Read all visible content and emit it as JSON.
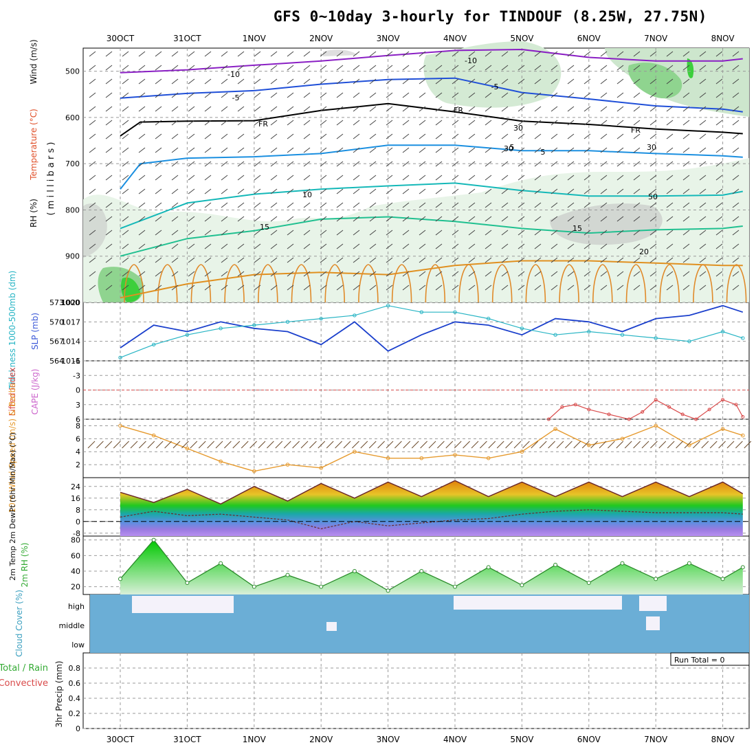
{
  "title": "GFS 0~10day 3-hourly for TINDOUF (8.25W, 27.75N)",
  "days": [
    "30OCT",
    "31OCT",
    "1NOV",
    "2NOV",
    "3NOV",
    "4NOV",
    "5NOV",
    "6NOV",
    "7NOV",
    "8NOV"
  ],
  "colors": {
    "slp": "#1a3fcc",
    "thickness": "#26b4c4",
    "lifted": "#d94a4a",
    "wind": "#e69a2e",
    "rh": "#33aa33",
    "cloud": "#6baed6",
    "cloud_clear": "#f4f2fa",
    "temp_fill": "#e88a20"
  },
  "chart_data": [
    {
      "type": "line",
      "panel": "upper-air cross-section",
      "ylabel_parts": [
        "RH (%)",
        "Temperature (°C)",
        "Wind (m/s)"
      ],
      "ylabel_unit": "( m i l l i b a r s )",
      "yticks": [
        500,
        600,
        700,
        800,
        900,
        1000
      ],
      "ylim": [
        450,
        1000
      ],
      "contour_labels": [
        "-10",
        "-10",
        "-5",
        "-5",
        "FR",
        "FR",
        "FR",
        "5",
        "5",
        "10",
        "15",
        "15",
        "20",
        "10",
        "10",
        "30",
        "30",
        "30",
        "50"
      ],
      "series": [
        {
          "name": "-10",
          "x": [
            0,
            1,
            2,
            3,
            4,
            5,
            6,
            7,
            8,
            9,
            9.3
          ],
          "values": [
            503,
            497,
            487,
            478,
            466,
            455,
            453,
            470,
            478,
            478,
            473
          ]
        },
        {
          "name": "-5",
          "x": [
            0,
            1,
            2,
            3,
            4,
            5,
            6,
            7,
            8,
            9,
            9.3
          ],
          "values": [
            558,
            548,
            542,
            528,
            518,
            515,
            546,
            560,
            575,
            582,
            588
          ]
        },
        {
          "name": "FR",
          "x": [
            0,
            0.3,
            1,
            2,
            3,
            4,
            5,
            6,
            7,
            8,
            9,
            9.3
          ],
          "values": [
            640,
            610,
            608,
            607,
            585,
            570,
            588,
            608,
            615,
            625,
            632,
            635
          ]
        },
        {
          "name": "5",
          "x": [
            0,
            0.3,
            1,
            2,
            3,
            4,
            5,
            6,
            7,
            8,
            9,
            9.3
          ],
          "values": [
            755,
            700,
            688,
            685,
            678,
            660,
            660,
            672,
            672,
            678,
            683,
            686
          ]
        },
        {
          "name": "10",
          "x": [
            0,
            1,
            2,
            3,
            4,
            5,
            6,
            7,
            8,
            9,
            9.3
          ],
          "values": [
            840,
            785,
            766,
            755,
            748,
            742,
            758,
            770,
            770,
            768,
            760
          ]
        },
        {
          "name": "15",
          "x": [
            0,
            1,
            2,
            3,
            4,
            5,
            6,
            7,
            8,
            9,
            9.3
          ],
          "values": [
            900,
            862,
            845,
            820,
            815,
            825,
            840,
            850,
            843,
            840,
            835
          ]
        },
        {
          "name": "20",
          "x": [
            0,
            1,
            2,
            3,
            4,
            5,
            6,
            7,
            8,
            9,
            9.3
          ],
          "values": [
            990,
            960,
            940,
            935,
            940,
            920,
            910,
            910,
            915,
            920,
            920
          ]
        }
      ]
    },
    {
      "type": "line",
      "panel": "thickness-slp",
      "ylabel": "Thickness 1000-500mb (dm)",
      "ylabel2": "SLP (mb)",
      "yticks_left": [
        564,
        567,
        570,
        573
      ],
      "yticks_right": [
        1011,
        1014,
        1017,
        1020
      ],
      "ylim": [
        1011,
        1020
      ],
      "series": [
        {
          "name": "SLP (mb)",
          "x": [
            0,
            0.5,
            1,
            1.5,
            2,
            2.5,
            3,
            3.5,
            4,
            4.5,
            5,
            5.5,
            6,
            6.5,
            7,
            7.5,
            8,
            8.5,
            9,
            9.3
          ],
          "values": [
            1013,
            1016.5,
            1015.5,
            1017,
            1016,
            1015.5,
            1013.5,
            1017,
            1012.5,
            1015,
            1017,
            1016.5,
            1015,
            1017.5,
            1017,
            1015.5,
            1017.5,
            1018,
            1019.5,
            1018.5
          ]
        },
        {
          "name": "Thickness 1000-500mb (dm)",
          "x": [
            0,
            0.5,
            1,
            1.5,
            2,
            2.5,
            3,
            3.5,
            4,
            4.5,
            5,
            5.5,
            6,
            6.5,
            7,
            7.5,
            8,
            8.5,
            9,
            9.3
          ],
          "values": [
            1011.5,
            1013.5,
            1015,
            1016,
            1016.5,
            1017,
            1017.5,
            1018,
            1019.5,
            1018.5,
            1018.5,
            1017.5,
            1016,
            1015,
            1015.5,
            1015,
            1014.5,
            1014,
            1015.5,
            1014.5
          ]
        }
      ]
    },
    {
      "type": "line",
      "panel": "cape-lifted-index",
      "ylabel": "Lifted Index",
      "ylabel2": "CAPE (J/kg)",
      "yticks": [
        -6,
        -3,
        0,
        3,
        6
      ],
      "ylim": [
        -6,
        6
      ],
      "series": [
        {
          "name": "Lifted Index",
          "x": [
            6.4,
            6.6,
            6.8,
            7.0,
            7.3,
            7.6,
            7.8,
            8.0,
            8.2,
            8.4,
            8.6,
            8.8,
            9.0,
            9.2,
            9.3
          ],
          "values": [
            6,
            3.5,
            3,
            4,
            5,
            6,
            4.5,
            2,
            3.5,
            5,
            6,
            4,
            2,
            3,
            5.5
          ]
        }
      ]
    },
    {
      "type": "line",
      "panel": "10m-wind",
      "ylabel": "10m Wind Speed (m/s) & Barbs",
      "yticks": [
        2,
        4,
        6,
        8
      ],
      "ylim": [
        0,
        9
      ],
      "series": [
        {
          "name": "10m Wind Speed",
          "x": [
            0,
            0.5,
            1,
            1.5,
            2,
            2.5,
            3,
            3.5,
            4,
            4.5,
            5,
            5.5,
            6,
            6.5,
            7,
            7.5,
            8,
            8.5,
            9,
            9.3
          ],
          "values": [
            8,
            6.5,
            4.5,
            2.5,
            1,
            2,
            1.5,
            4,
            3,
            3,
            3.5,
            3,
            4,
            7.5,
            5,
            6,
            8,
            5,
            7.5,
            6.5
          ]
        }
      ]
    },
    {
      "type": "area",
      "panel": "2m-temp",
      "ylabel": "2m Temp 2m DewPt (6hr Min/Max) (°C)",
      "yticks": [
        -8,
        0,
        8,
        16,
        24
      ],
      "ylim": [
        -10,
        30
      ],
      "series": [
        {
          "name": "2m Temp",
          "x": [
            0,
            0.5,
            1,
            1.5,
            2,
            2.5,
            3,
            3.5,
            4,
            4.5,
            5,
            5.5,
            6,
            6.5,
            7,
            7.5,
            8,
            8.5,
            9,
            9.3
          ],
          "values": [
            20,
            13,
            22,
            12,
            24,
            14,
            26,
            16,
            27,
            17,
            28,
            17,
            27,
            17,
            27,
            17,
            27,
            17,
            27,
            19
          ]
        },
        {
          "name": "2m DewPt",
          "x": [
            0,
            0.5,
            1,
            1.5,
            2,
            2.5,
            3,
            3.5,
            4,
            4.5,
            5,
            5.5,
            6,
            6.5,
            7,
            7.5,
            8,
            8.5,
            9,
            9.3
          ],
          "values": [
            3,
            7,
            4,
            5,
            3,
            1,
            -5,
            0,
            -3,
            -1,
            1,
            2,
            5,
            7,
            8,
            7,
            6,
            6,
            6,
            5
          ]
        }
      ]
    },
    {
      "type": "area",
      "panel": "2m-rh",
      "ylabel": "2m RH (%)",
      "yticks": [
        20,
        40,
        60,
        80
      ],
      "ylim": [
        10,
        85
      ],
      "series": [
        {
          "name": "2m RH",
          "x": [
            0,
            0.5,
            1,
            1.5,
            2,
            2.5,
            3,
            3.5,
            4,
            4.5,
            5,
            5.5,
            6,
            6.5,
            7,
            7.5,
            8,
            8.5,
            9,
            9.3
          ],
          "values": [
            30,
            80,
            25,
            50,
            20,
            35,
            20,
            40,
            15,
            40,
            20,
            45,
            22,
            48,
            25,
            50,
            30,
            50,
            30,
            45
          ]
        }
      ]
    },
    {
      "type": "heatmap",
      "panel": "cloud-cover",
      "ylabel": "Cloud Cover (%)",
      "rows": [
        "high",
        "middle",
        "low"
      ]
    },
    {
      "type": "bar",
      "panel": "precip",
      "ylabel": "3hr Precip (mm)",
      "legend_left": "Total / Rain",
      "legend_right": "Convective",
      "run_total": "Run Total = 0",
      "yticks": [
        "0",
        "0.2",
        "0.4",
        "0.6",
        "0.8"
      ],
      "ylim": [
        0,
        1
      ],
      "values": []
    }
  ]
}
